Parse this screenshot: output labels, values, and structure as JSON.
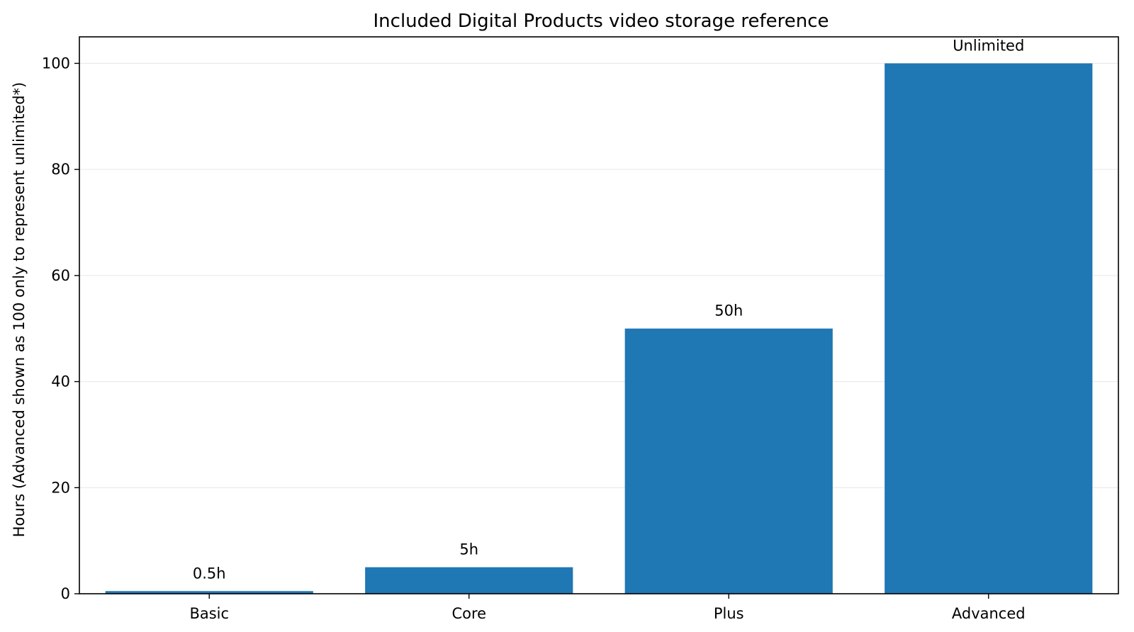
{
  "chart_data": {
    "type": "bar",
    "title": "Included Digital Products video storage reference",
    "xlabel": "",
    "ylabel": "Hours (Advanced shown as 100 only to represent unlimited*)",
    "categories": [
      "Basic",
      "Core",
      "Plus",
      "Advanced"
    ],
    "values": [
      0.5,
      5,
      50,
      100
    ],
    "data_labels": [
      "0.5h",
      "5h",
      "50h",
      "Unlimited"
    ],
    "ylim": [
      0,
      105
    ],
    "yticks": [
      0,
      20,
      40,
      60,
      80,
      100
    ],
    "grid": "horizontal",
    "bar_color": "#1f77b4",
    "grid_color": "#e6e6e6",
    "legend": "none"
  }
}
